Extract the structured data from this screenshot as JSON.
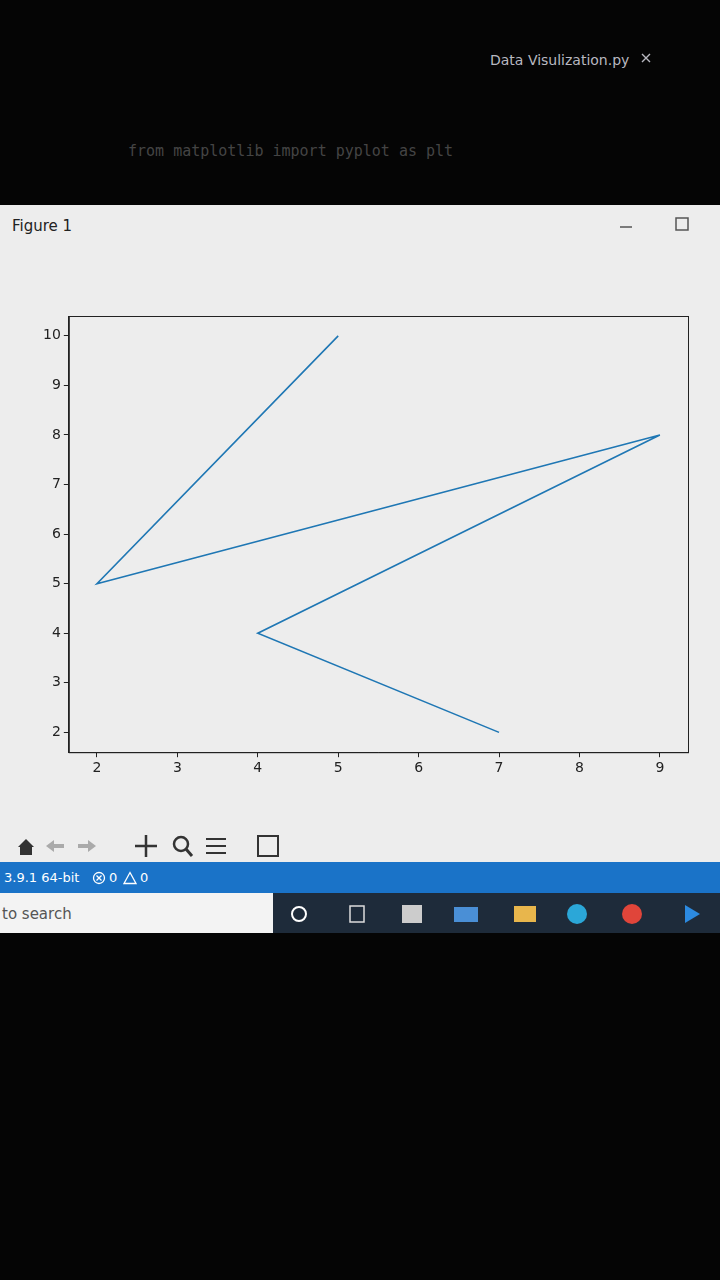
{
  "editor": {
    "tab": "Data Visulization.py",
    "code": "from matplotlib import pyplot as plt"
  },
  "window": {
    "title": "Figure 1"
  },
  "status_bar": {
    "python": "3.9.1 64-bit",
    "errors": 0,
    "warnings": 0
  },
  "taskbar": {
    "search": "to search"
  },
  "chart_data": {
    "type": "line",
    "color": "#1f77b4",
    "x": [
      5,
      2,
      9,
      4,
      7
    ],
    "values": [
      10,
      5,
      8,
      4,
      2
    ],
    "xlim": [
      1.65,
      9.35
    ],
    "xticks": [
      2,
      3,
      4,
      5,
      6,
      7,
      8,
      9
    ],
    "ylim": [
      1.6,
      10.4
    ],
    "yticks": [
      2,
      3,
      4,
      5,
      6,
      7,
      8,
      9,
      10
    ],
    "grid": false
  }
}
